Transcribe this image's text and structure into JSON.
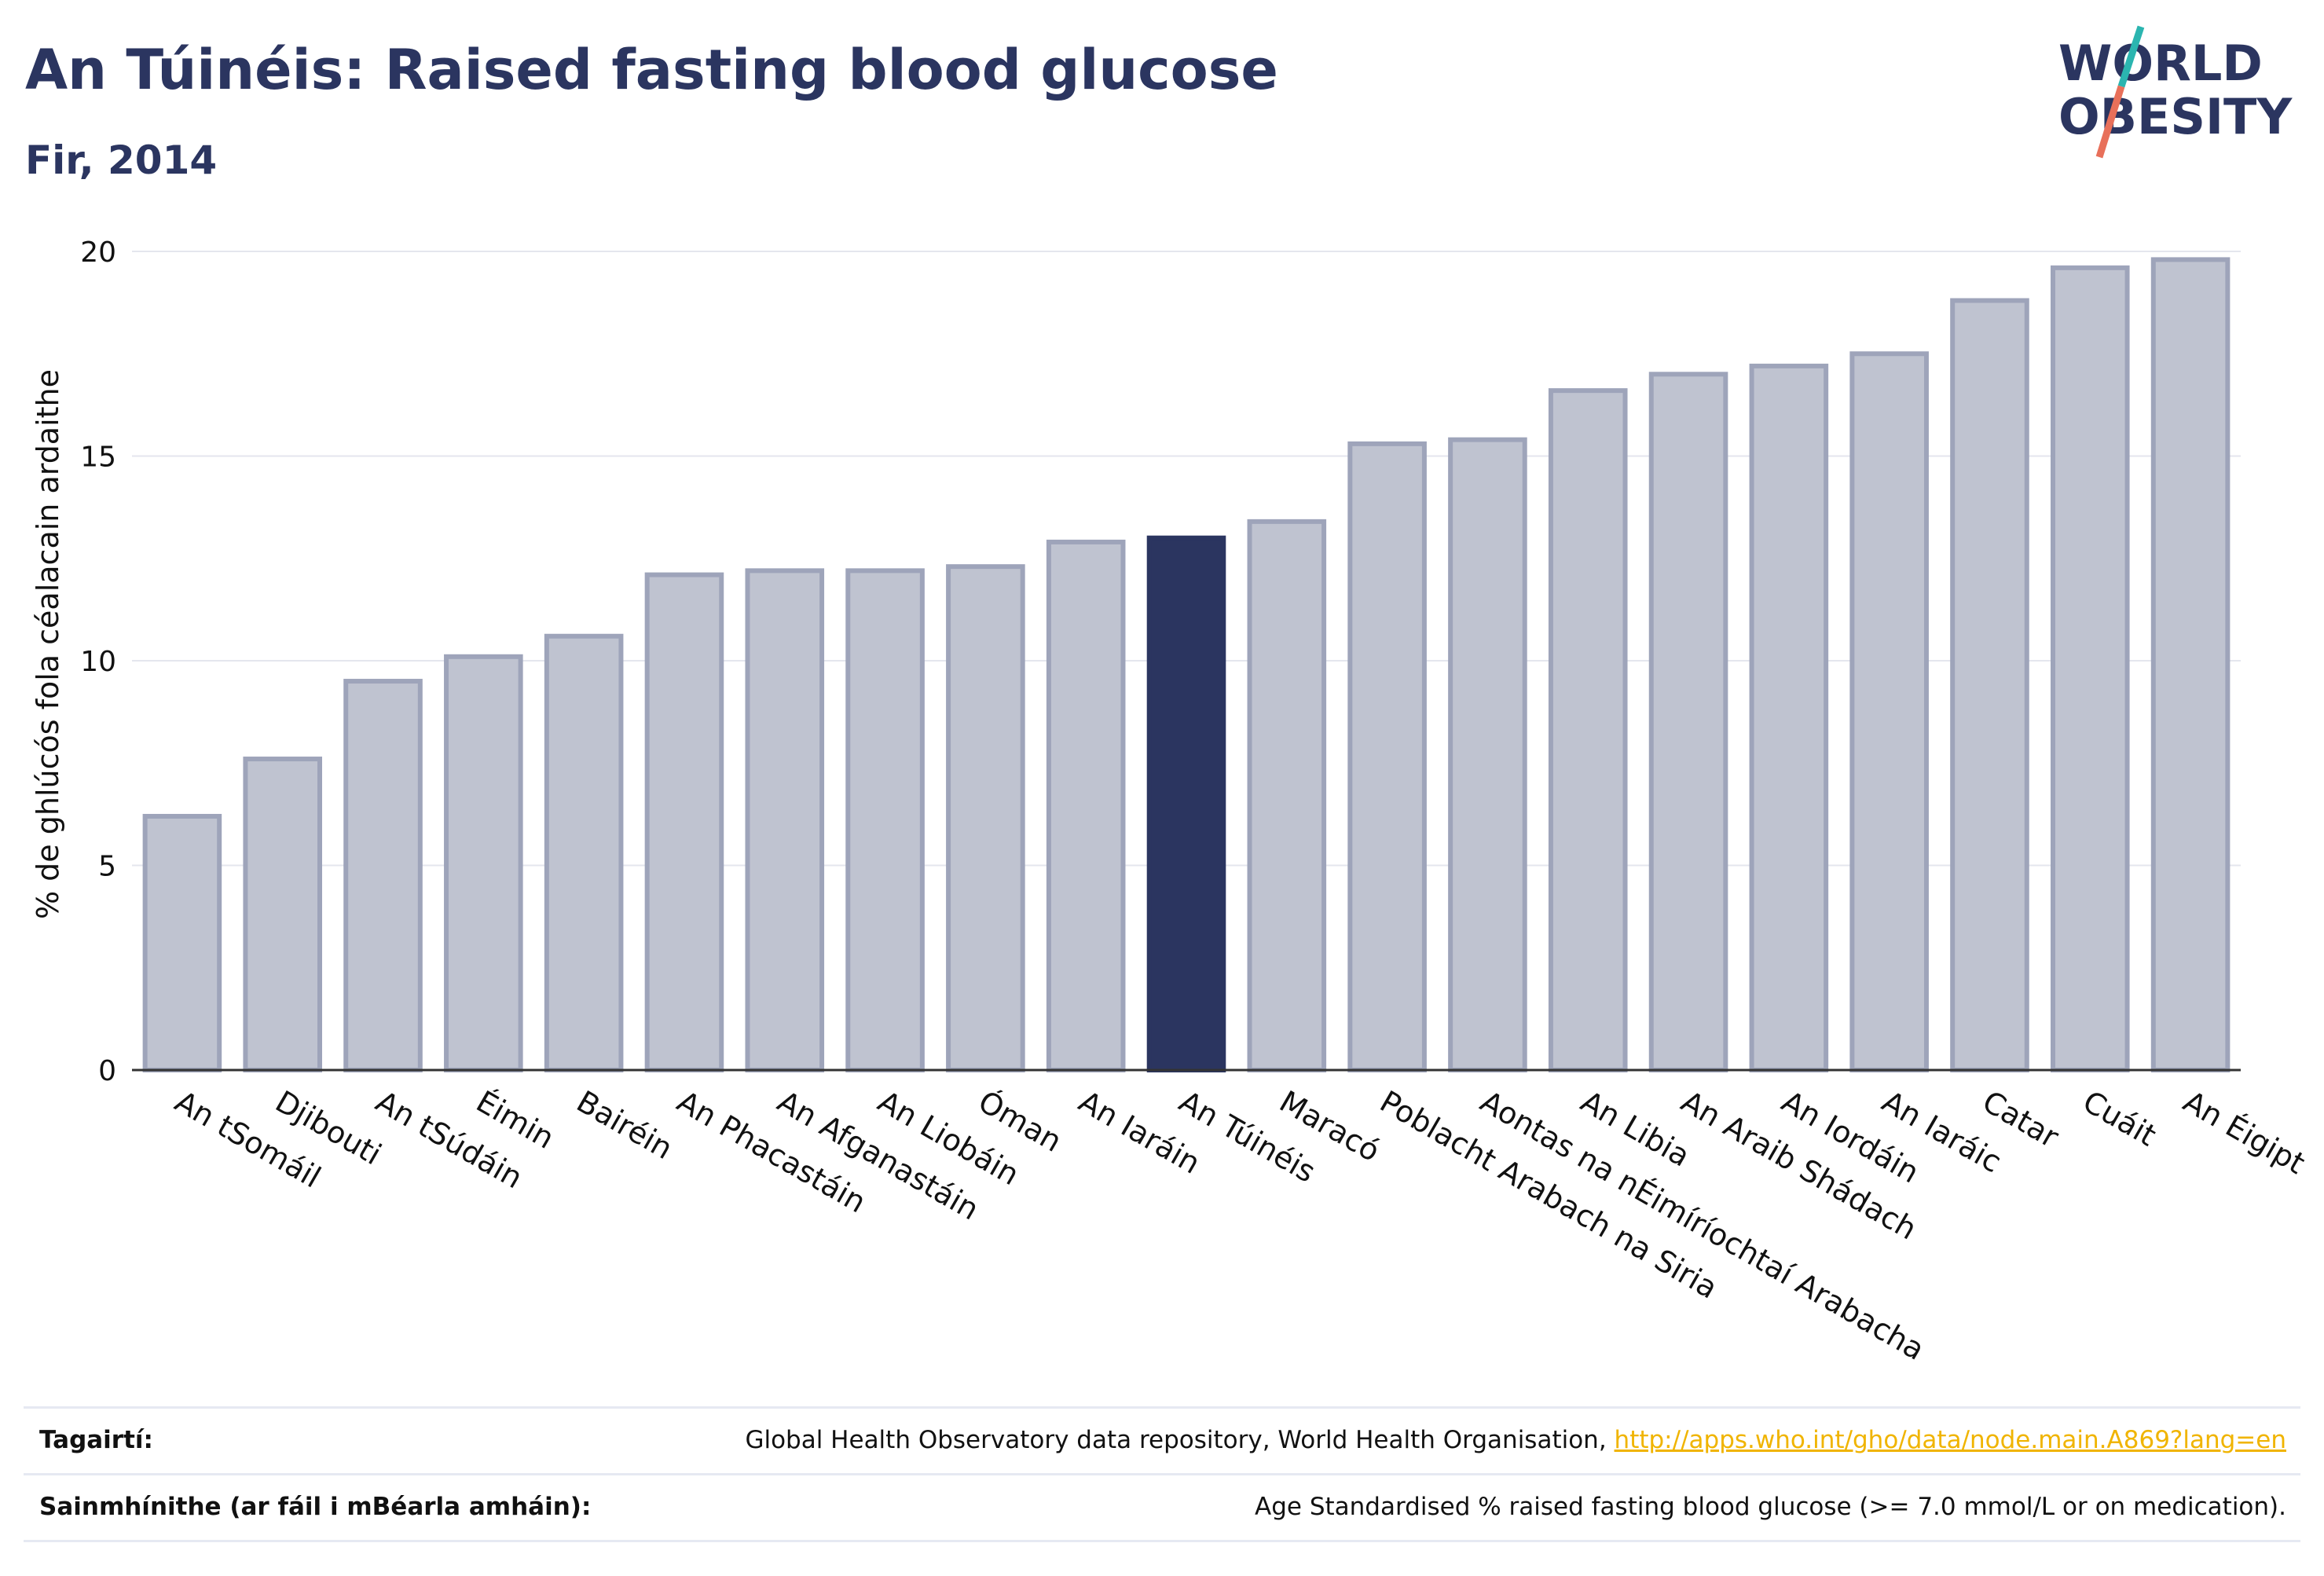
{
  "header": {
    "title": "An Túinéis: Raised fasting blood glucose",
    "subtitle": "Fir, 2014"
  },
  "logo": {
    "line1": "WORLD",
    "line2": "OBESITY",
    "text_color": "#2b3560",
    "slash_top_color": "#2bb5b0",
    "slash_bottom_color": "#e8705a"
  },
  "chart_data": {
    "type": "bar",
    "ylabel": "% de ghlúcós fola céalacain ardaithe",
    "ylim": [
      0,
      20
    ],
    "yticks": [
      0,
      5,
      10,
      15,
      20
    ],
    "grid": true,
    "highlight_category": "An Túinéis",
    "colors": {
      "bar": "#bfc3d0",
      "bar_edge": "#9ea4ba",
      "highlight": "#2b3560",
      "grid": "#e4e6ee",
      "axis": "#333333"
    },
    "categories": [
      "An tSomáil",
      "Djibouti",
      "An tSúdáin",
      "Éimin",
      "Bairéin",
      "An Phacastáin",
      "An Afganastáin",
      "An Liobáin",
      "Óman",
      "An Iaráin",
      "An Túinéis",
      "Maracó",
      "Poblacht Arabach na Siria",
      "Aontas na nÉimíríochtaí Arabacha",
      "An Libia",
      "An Araib Shádach",
      "An Iordáin",
      "An Iaráic",
      "Catar",
      "Cuáit",
      "An Éigipt"
    ],
    "values": [
      6.2,
      7.6,
      9.5,
      10.1,
      10.6,
      12.1,
      12.2,
      12.2,
      12.3,
      12.9,
      13.0,
      13.4,
      15.3,
      15.4,
      16.6,
      17.0,
      17.2,
      17.5,
      18.8,
      19.6,
      19.8
    ]
  },
  "footer": {
    "references_label": "Tagairtí:",
    "references_text": "Global Health Observatory data repository, World Health Organisation,",
    "references_link": "http://apps.who.int/gho/data/node.main.A869?lang=en",
    "definitions_label": "Sainmhínithe (ar fáil i mBéarla amháin):",
    "definitions_text": "Age Standardised % raised fasting blood glucose (>= 7.0 mmol/L or on medication)."
  }
}
